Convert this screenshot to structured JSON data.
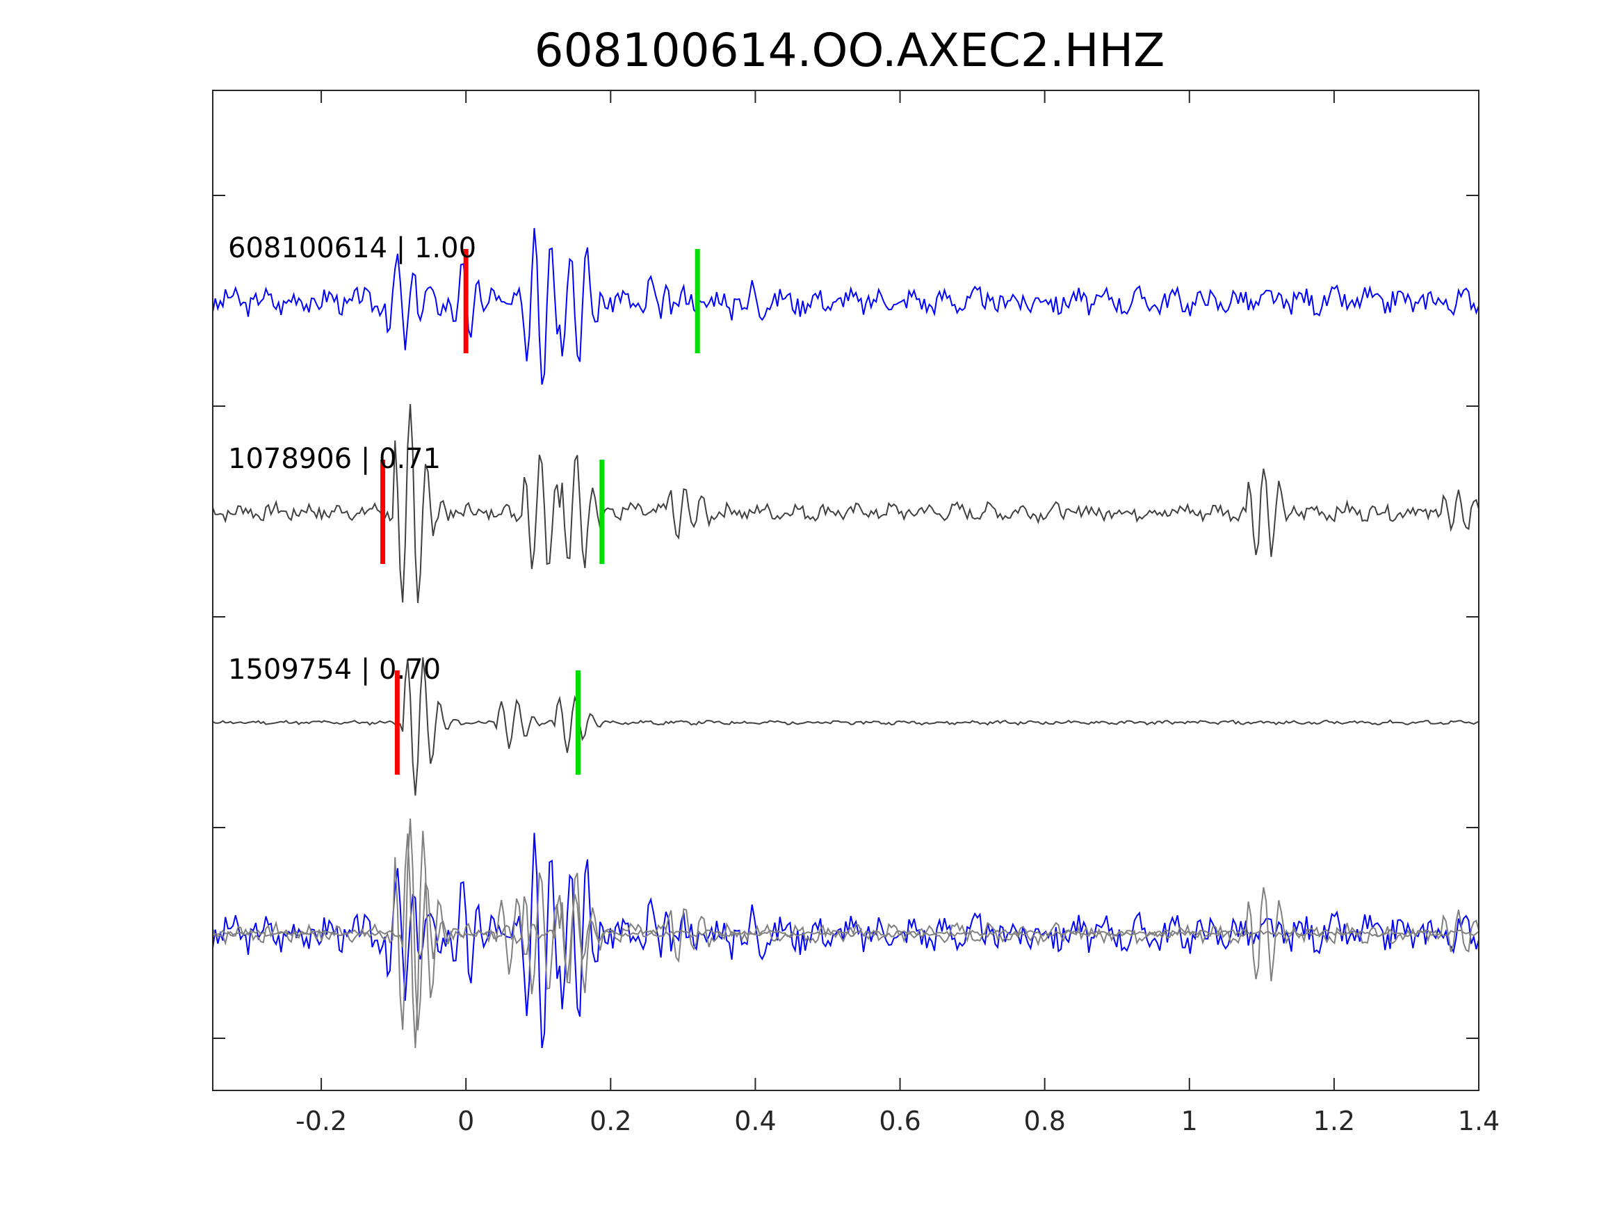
{
  "chart_data": {
    "type": "line",
    "title": "608100614.OO.AXEC2.HHZ",
    "xlabel": "",
    "ylabel": "",
    "xlim": [
      -0.35,
      1.4
    ],
    "xticks": [
      "-0.2",
      "0",
      "0.2",
      "0.4",
      "0.6",
      "0.8",
      "1",
      "1.2",
      "1.4"
    ],
    "grid": false,
    "traces": [
      {
        "name": "608100614",
        "label": "608100614 | 1.00",
        "color": "#0000ff",
        "p_pick": 0.0,
        "s_pick": 0.32,
        "seed": 3,
        "events": [
          {
            "t": -0.09,
            "a": 0.5
          },
          {
            "t": 0.0,
            "a": 0.35
          },
          {
            "t": 0.1,
            "a": 1.0
          },
          {
            "t": 0.15,
            "a": 0.7
          },
          {
            "t": 0.26,
            "a": 0.2
          },
          {
            "t": 0.38,
            "a": 0.2
          }
        ],
        "noise": 0.12
      },
      {
        "name": "1078906",
        "label": "1078906 | 0.71",
        "color": "#404040",
        "p_pick": -0.115,
        "s_pick": 0.188,
        "seed": 7,
        "events": [
          {
            "t": -0.08,
            "a": 1.0
          },
          {
            "t": 0.1,
            "a": 0.6
          },
          {
            "t": 0.15,
            "a": 0.55
          },
          {
            "t": 0.3,
            "a": 0.25
          },
          {
            "t": 1.1,
            "a": 0.45
          },
          {
            "t": 1.37,
            "a": 0.2
          }
        ],
        "noise": 0.06
      },
      {
        "name": "1509754",
        "label": "1509754 | 0.70",
        "color": "#404040",
        "p_pick": -0.095,
        "s_pick": 0.155,
        "seed": 11,
        "events": [
          {
            "t": -0.07,
            "a": 1.0
          },
          {
            "t": 0.06,
            "a": 0.35
          },
          {
            "t": 0.14,
            "a": 0.4
          }
        ],
        "noise": 0.02
      }
    ],
    "pick_colors": {
      "p": "#ff0000",
      "s": "#00dd00"
    },
    "overlay_color": "#808080"
  }
}
